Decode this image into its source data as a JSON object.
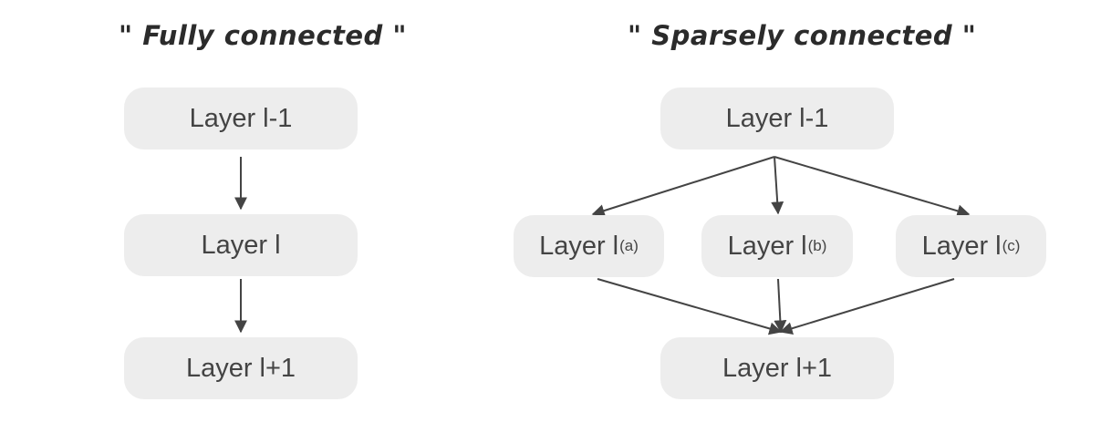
{
  "diagram": {
    "fully_connected": {
      "title": "\" Fully connected \"",
      "layer_prev": "Layer l-1",
      "layer_mid": "Layer l",
      "layer_next": "Layer l+1"
    },
    "sparsely_connected": {
      "title": "\" Sparsely connected \"",
      "layer_prev": "Layer l-1",
      "branch_a": {
        "text": "Layer l",
        "sub": "(a)"
      },
      "branch_b": {
        "text": "Layer l",
        "sub": "(b)"
      },
      "branch_c": {
        "text": "Layer l",
        "sub": "(c)"
      },
      "layer_next": "Layer l+1"
    },
    "colors": {
      "node_fill": "#ededed",
      "node_text": "#444444",
      "edge": "#444444"
    }
  }
}
